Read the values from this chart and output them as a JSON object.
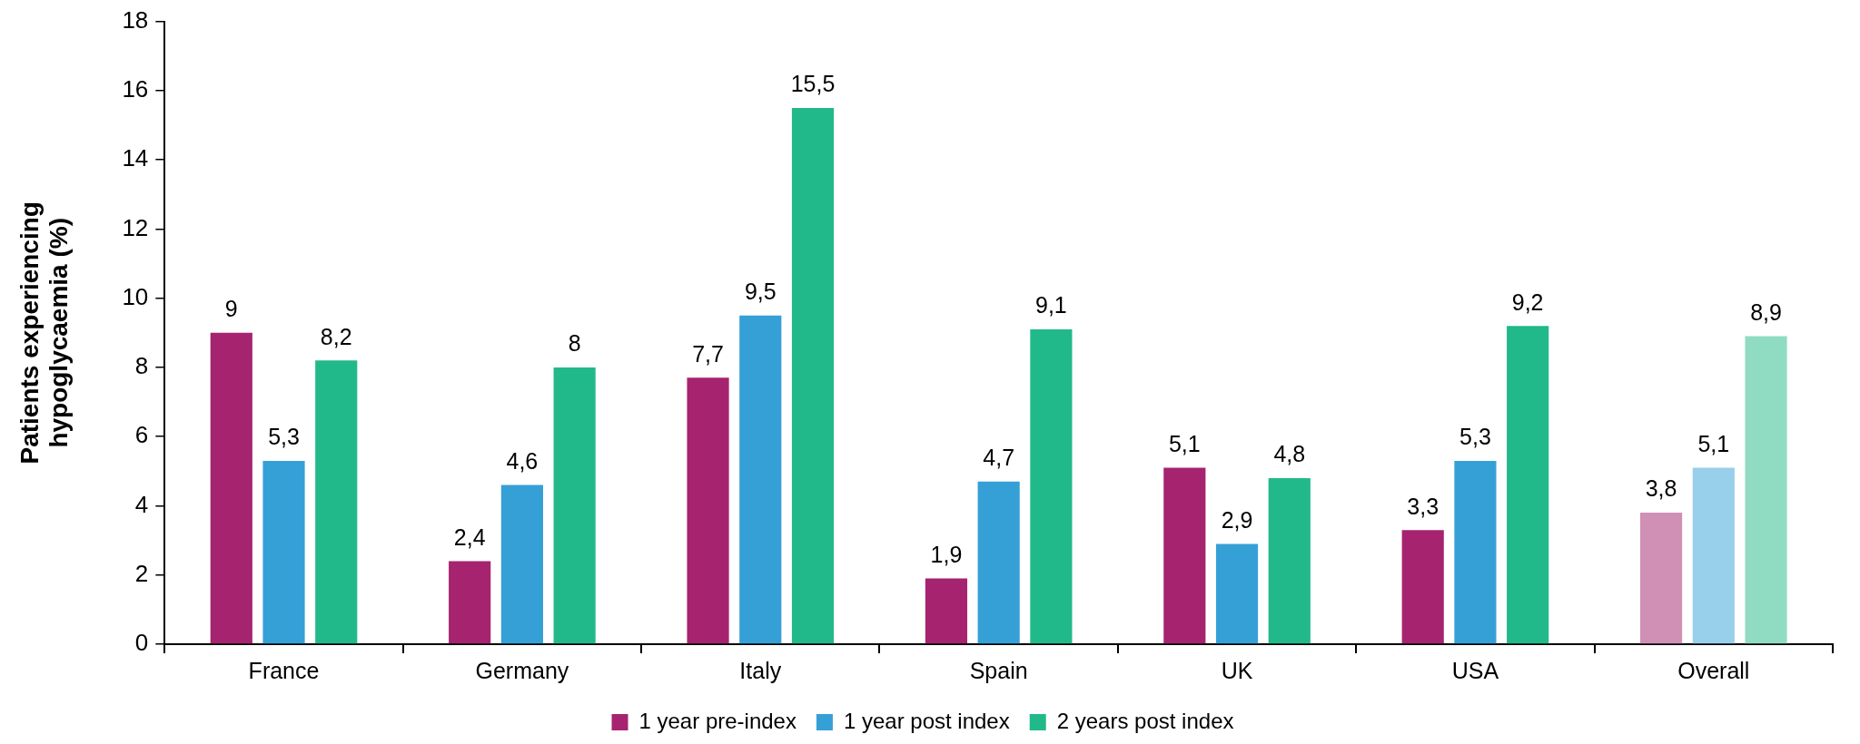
{
  "chart_data": {
    "type": "bar",
    "ylabel": "Patients experiencing hypoglycaemia (%)",
    "categories": [
      "France",
      "Germany",
      "Italy",
      "Spain",
      "UK",
      "USA",
      "Overall"
    ],
    "series": [
      {
        "name": "1 year pre-index",
        "color": "#a62370",
        "colors": [
          "#a62370",
          "#a62370",
          "#a62370",
          "#a62370",
          "#a62370",
          "#a62370",
          "#d08fb5"
        ],
        "values": [
          9,
          2.4,
          7.7,
          1.9,
          5.1,
          3.3,
          3.8
        ],
        "value_labels": [
          "9",
          "2,4",
          "7,7",
          "1,9",
          "5,1",
          "3,3",
          "3,8"
        ]
      },
      {
        "name": "1 year post index",
        "color": "#35a0d6",
        "colors": [
          "#35a0d6",
          "#35a0d6",
          "#35a0d6",
          "#35a0d6",
          "#35a0d6",
          "#35a0d6",
          "#98cfeb"
        ],
        "values": [
          5.3,
          4.6,
          9.5,
          4.7,
          2.9,
          5.3,
          5.1
        ],
        "value_labels": [
          "5,3",
          "4,6",
          "9,5",
          "4,7",
          "2,9",
          "5,3",
          "5,1"
        ]
      },
      {
        "name": "2 years post index",
        "color": "#22b98a",
        "colors": [
          "#22b98a",
          "#22b98a",
          "#22b98a",
          "#22b98a",
          "#22b98a",
          "#22b98a",
          "#8fdcc3"
        ],
        "values": [
          8.2,
          8,
          15.5,
          9.1,
          4.8,
          9.2,
          8.9
        ],
        "value_labels": [
          "8,2",
          "8",
          "15,5",
          "9,1",
          "4,8",
          "9,2",
          "8,9"
        ]
      }
    ],
    "ylim": [
      0,
      18
    ],
    "yticks": [
      0,
      2,
      4,
      6,
      8,
      10,
      12,
      14,
      16,
      18
    ],
    "grid": false,
    "legend": "bottom"
  }
}
